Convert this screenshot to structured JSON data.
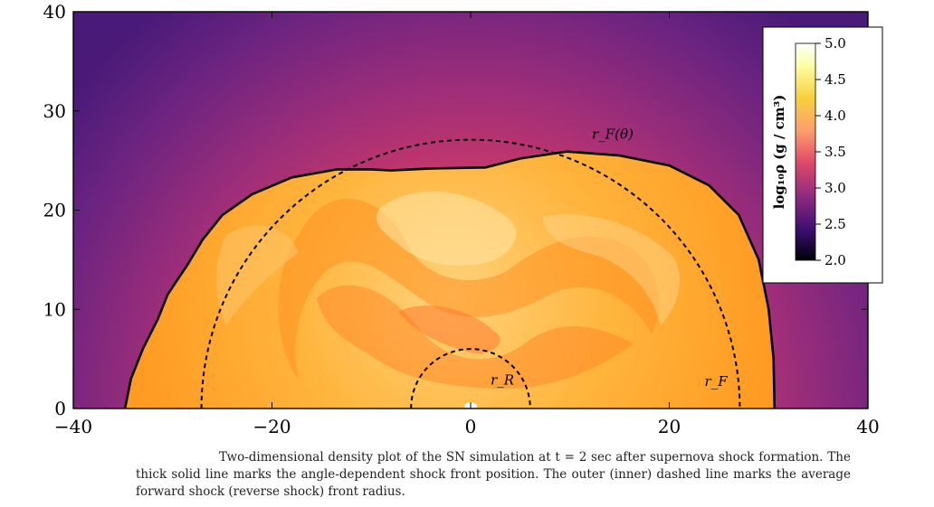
{
  "chart_data": {
    "type": "heatmap",
    "xlim": [
      -40,
      40
    ],
    "ylim": [
      0,
      40
    ],
    "x_ticks": [
      -40,
      -20,
      0,
      20,
      40
    ],
    "y_ticks": [
      0,
      10,
      20,
      30,
      40
    ],
    "x_tick_labels": [
      "−40",
      "−20",
      "0",
      "20",
      "40"
    ],
    "y_tick_labels": [
      "0",
      "10",
      "20",
      "30",
      "40"
    ],
    "colorbar": {
      "label": "log₁₀ρ (g / cm³)",
      "range": [
        2.0,
        5.0
      ],
      "ticks": [
        2.0,
        2.5,
        3.0,
        3.5,
        4.0,
        4.5,
        5.0
      ],
      "tick_labels": [
        "2.0",
        "2.5",
        "3.0",
        "3.5",
        "4.0",
        "4.5",
        "5.0"
      ],
      "colors": [
        "#000004",
        "#3b0f70",
        "#8c2981",
        "#de4968",
        "#fe9f6d",
        "#f7d13d",
        "#fcffa4",
        "#ffffff"
      ]
    },
    "shock_front": {
      "points": [
        [
          -34.8,
          0
        ],
        [
          -34.2,
          3
        ],
        [
          -33,
          6
        ],
        [
          -31.5,
          9
        ],
        [
          -30.5,
          11.5
        ],
        [
          -29.5,
          13
        ],
        [
          -28.5,
          14.5
        ],
        [
          -27,
          17
        ],
        [
          -25,
          19.5
        ],
        [
          -22,
          21.6
        ],
        [
          -18,
          23.3
        ],
        [
          -13.5,
          24.1
        ],
        [
          -10,
          24.1
        ],
        [
          -8,
          24
        ],
        [
          -4,
          24.2
        ],
        [
          1.5,
          24.3
        ],
        [
          5,
          25.2
        ],
        [
          9.7,
          25.9
        ],
        [
          15,
          25.5
        ],
        [
          20,
          24.5
        ],
        [
          24,
          22.5
        ],
        [
          27,
          19.5
        ],
        [
          29,
          15
        ],
        [
          30,
          10
        ],
        [
          30.5,
          5
        ],
        [
          30.6,
          0
        ]
      ]
    },
    "forward_shock_radius": 27.1,
    "reverse_shock_radius": 6.0,
    "annotations": [
      {
        "text": "r_F(θ)",
        "x": 14.3,
        "y": 27.2
      },
      {
        "text": "r_R",
        "x": 3.2,
        "y": 2.4
      },
      {
        "text": "r_F",
        "x": 24.7,
        "y": 2.3
      }
    ]
  },
  "caption": "Two-dimensional density plot of the SN simulation at t = 2 sec after supernova shock formation. The thick solid line marks the angle-dependent shock front position. The outer (inner) dashed line marks the average forward shock (reverse shock) front radius."
}
